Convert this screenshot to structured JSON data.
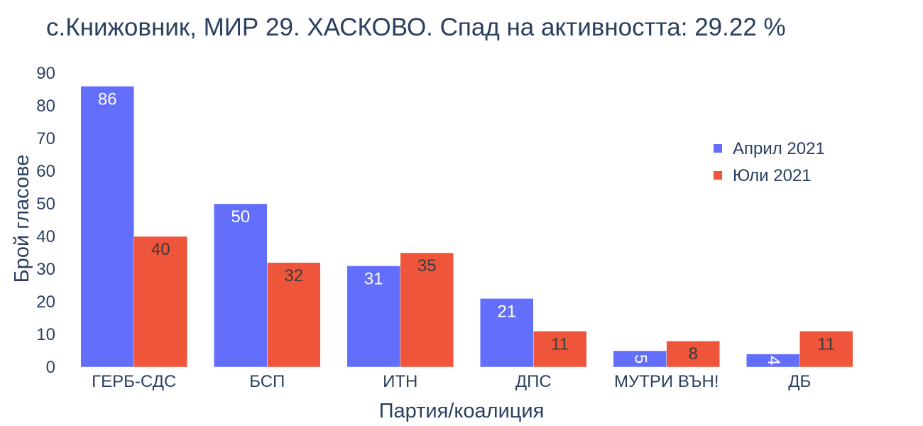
{
  "chart_data": {
    "type": "bar",
    "title": "с.Книжовник, МИР 29. ХАСКОВО. Спад на активността: 29.22 %",
    "xlabel": "Партия/коалиция",
    "ylabel": "Брой гласове",
    "categories": [
      "ГЕРБ-СДС",
      "БСП",
      "ИТН",
      "ДПС",
      "МУТРИ ВЪН!",
      "ДБ"
    ],
    "series": [
      {
        "name": "Април 2021",
        "color": "#636efa",
        "values": [
          86,
          50,
          31,
          21,
          5,
          4
        ]
      },
      {
        "name": "Юли 2021",
        "color": "#ef553b",
        "values": [
          40,
          32,
          35,
          11,
          8,
          11
        ]
      }
    ],
    "ylim": [
      0,
      90
    ],
    "yticks": [
      0,
      10,
      20,
      30,
      40,
      50,
      60,
      70,
      80,
      90
    ],
    "grid": false,
    "legend_position": "top-right"
  }
}
